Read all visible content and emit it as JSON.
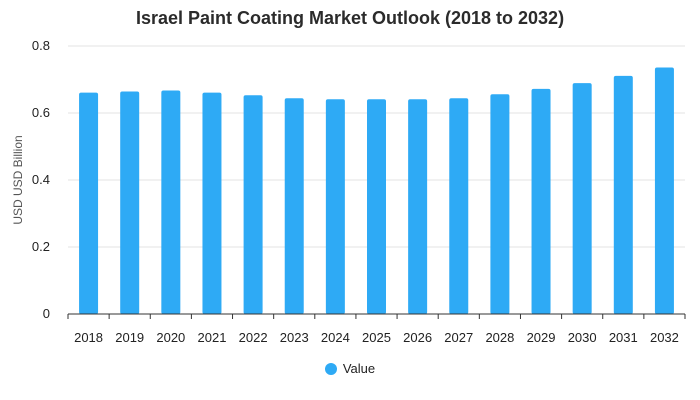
{
  "colors": {
    "bar": "#2eaaf5",
    "grid": "#e3e3e3",
    "axis": "#333333"
  },
  "chart_data": {
    "type": "bar",
    "title": "Israel Paint Coating Market Outlook (2018 to 2032)",
    "xlabel": "",
    "ylabel": "USD USD Billion",
    "ylim": [
      0,
      0.8
    ],
    "yticks": [
      "0",
      "0.2",
      "0.4",
      "0.6",
      "0.8"
    ],
    "grid": true,
    "legend_position": "bottom-center",
    "categories": [
      "2018",
      "2019",
      "2020",
      "2021",
      "2022",
      "2023",
      "2024",
      "2025",
      "2026",
      "2027",
      "2028",
      "2029",
      "2030",
      "2031",
      "2032"
    ],
    "series": [
      {
        "name": "Value",
        "values": [
          0.661,
          0.664,
          0.667,
          0.661,
          0.653,
          0.644,
          0.641,
          0.641,
          0.641,
          0.644,
          0.656,
          0.672,
          0.689,
          0.711,
          0.736
        ]
      }
    ]
  }
}
